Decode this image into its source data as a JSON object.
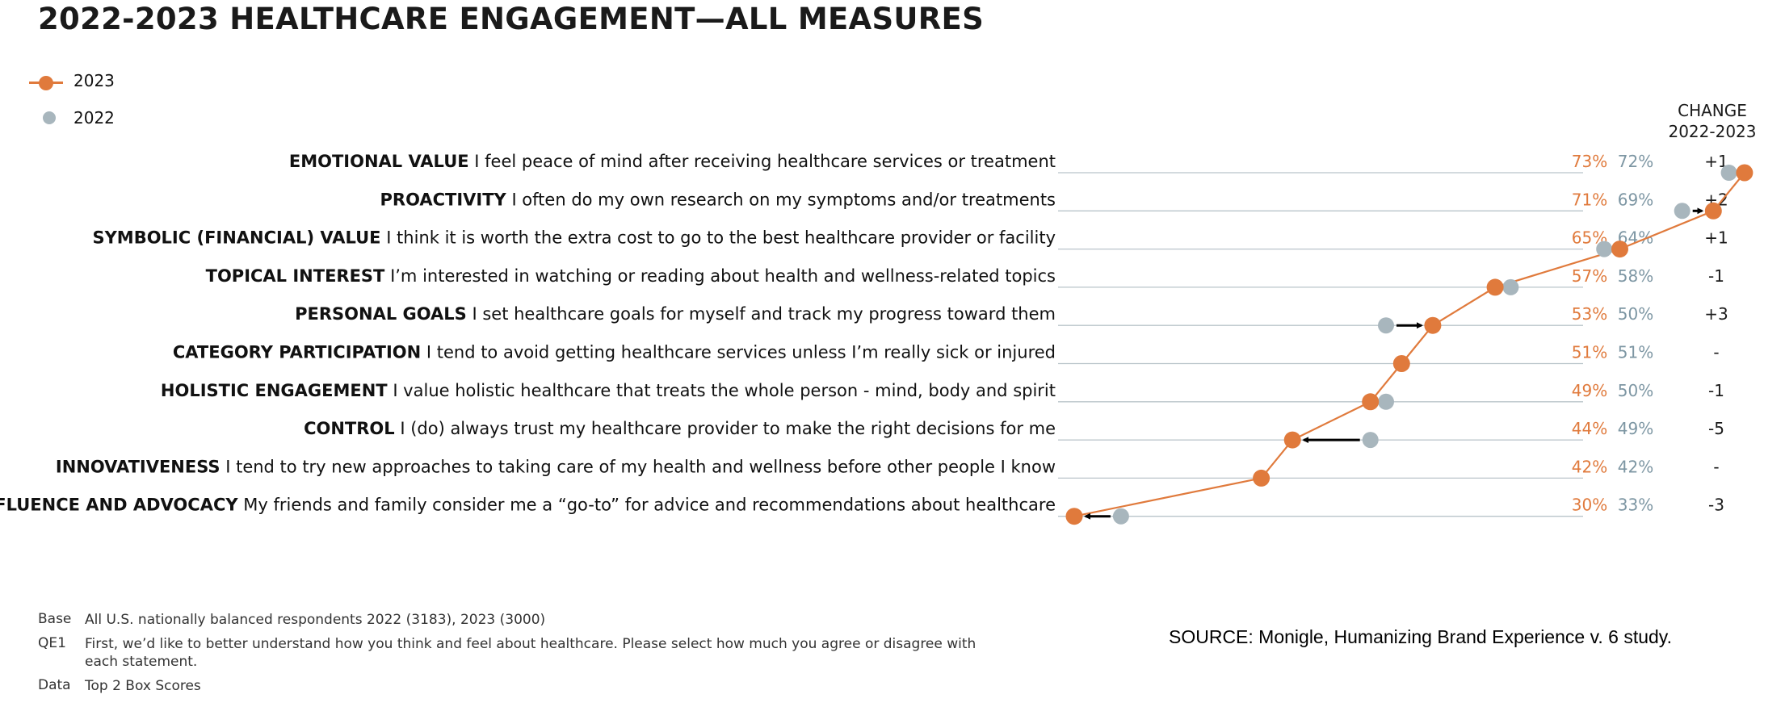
{
  "title": "2022-2023 HEALTHCARE ENGAGEMENT—ALL MEASURES",
  "legend": [
    {
      "label": "2023",
      "color": "#e07a3c"
    },
    {
      "label": "2022",
      "color": "#a8b6bd"
    }
  ],
  "change_header": [
    "CHANGE",
    "2022-2023"
  ],
  "chart_data": {
    "type": "dot-line",
    "series": [
      {
        "name": "2023",
        "color": "#e07a3c"
      },
      {
        "name": "2022",
        "color": "#a8b6bd"
      }
    ],
    "rows": [
      {
        "category": "EMOTIONAL VALUE",
        "statement": "I feel peace of mind after receiving healthcare services or treatment",
        "v2023": 73,
        "v2022": 72,
        "change": "+1"
      },
      {
        "category": "PROACTIVITY",
        "statement": "I often do my own research on my symptoms and/or treatments",
        "v2023": 71,
        "v2022": 69,
        "change": "+2"
      },
      {
        "category": "SYMBOLIC (FINANCIAL) VALUE",
        "statement": "I think it is worth the extra cost to go to the best healthcare provider or facility",
        "v2023": 65,
        "v2022": 64,
        "change": "+1"
      },
      {
        "category": "TOPICAL INTEREST",
        "statement": "I’m interested in watching or reading about health and wellness-related topics",
        "v2023": 57,
        "v2022": 58,
        "change": "-1"
      },
      {
        "category": "PERSONAL GOALS",
        "statement": "I set healthcare goals for myself and track my progress toward them",
        "v2023": 53,
        "v2022": 50,
        "change": "+3"
      },
      {
        "category": "CATEGORY PARTICIPATION",
        "statement": "I tend to avoid getting healthcare services unless I’m really sick or injured",
        "v2023": 51,
        "v2022": 51,
        "change": "-"
      },
      {
        "category": "HOLISTIC ENGAGEMENT",
        "statement": "I value holistic healthcare that treats the whole person - mind, body and spirit",
        "v2023": 49,
        "v2022": 50,
        "change": "-1"
      },
      {
        "category": "CONTROL",
        "statement": "I (do) always trust my healthcare provider to make the right decisions for me",
        "v2023": 44,
        "v2022": 49,
        "change": "-5"
      },
      {
        "category": "INNOVATIVENESS",
        "statement": "I tend to try new approaches to taking care of my health and wellness before other people I know",
        "v2023": 42,
        "v2022": 42,
        "change": "-"
      },
      {
        "category": "INFLUENCE AND ADVOCACY",
        "statement": "My friends and family consider me a “go-to” for advice and recommendations about healthcare",
        "v2023": 30,
        "v2022": 33,
        "change": "-3"
      }
    ],
    "arrows_shown_for": [
      "PROACTIVITY",
      "PERSONAL GOALS",
      "CONTROL",
      "INFLUENCE AND ADVOCACY"
    ]
  },
  "notes": [
    {
      "key": "Base",
      "text": "All U.S. nationally balanced respondents 2022 (3183), 2023 (3000)"
    },
    {
      "key": "QE1",
      "text": "First, we’d like to better understand how you think and feel about healthcare. Please select how much you agree or disagree with each statement."
    },
    {
      "key": "Data",
      "text": "Top 2 Box Scores"
    }
  ],
  "source": "SOURCE: Monigle, Humanizing Brand Experience v. 6 study."
}
